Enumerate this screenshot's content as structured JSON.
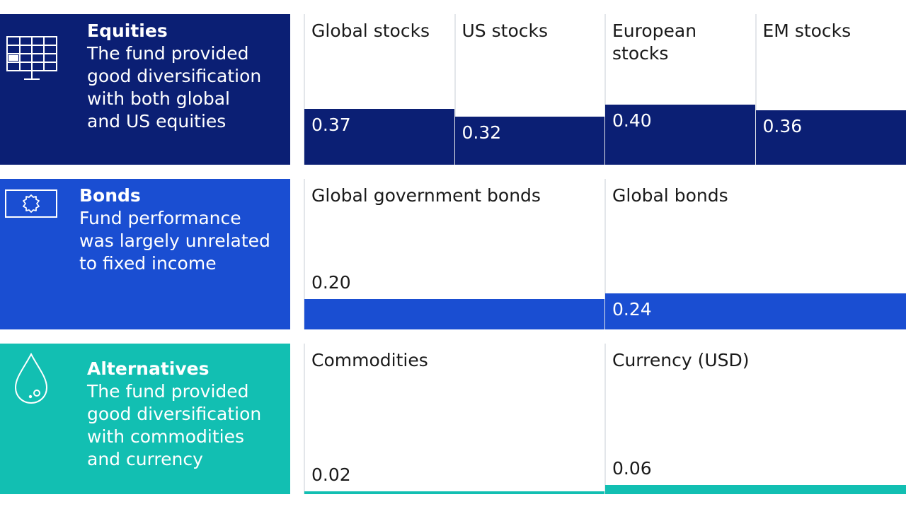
{
  "rows": [
    {
      "id": "equities",
      "color": "#0b1f74",
      "title": "Equities",
      "description": "The fund provided\ngood diversification\nwith both global\nand US equities",
      "icon": "monitor-grid-icon"
    },
    {
      "id": "bonds",
      "color": "#1a4ed2",
      "title": "Bonds",
      "description": "Fund performance\nwas largely unrelated\nto fixed income",
      "icon": "certificate-seal-icon"
    },
    {
      "id": "alternatives",
      "color": "#12bfb2",
      "title": "Alternatives",
      "description": "The fund provided\ngood diversification\nwith commodities\nand currency",
      "icon": "droplet-icon"
    }
  ],
  "chart_data": {
    "type": "bar",
    "ylim": [
      0,
      1
    ],
    "groups": [
      {
        "name": "Equities",
        "color": "#0b1f74",
        "categories": [
          "Global stocks",
          "US stocks",
          "European\nstocks",
          "EM stocks"
        ],
        "values": [
          0.37,
          0.32,
          0.4,
          0.36
        ],
        "labels": [
          "0.37",
          "0.32",
          "0.40",
          "0.36"
        ]
      },
      {
        "name": "Bonds",
        "color": "#1a4ed2",
        "categories": [
          "Global government bonds",
          "Global bonds"
        ],
        "values": [
          0.2,
          0.24
        ],
        "labels": [
          "0.20",
          "0.24"
        ]
      },
      {
        "name": "Alternatives",
        "color": "#12bfb2",
        "categories": [
          "Commodities",
          "Currency (USD)"
        ],
        "values": [
          0.02,
          0.06
        ],
        "labels": [
          "0.02",
          "0.06"
        ]
      }
    ]
  }
}
